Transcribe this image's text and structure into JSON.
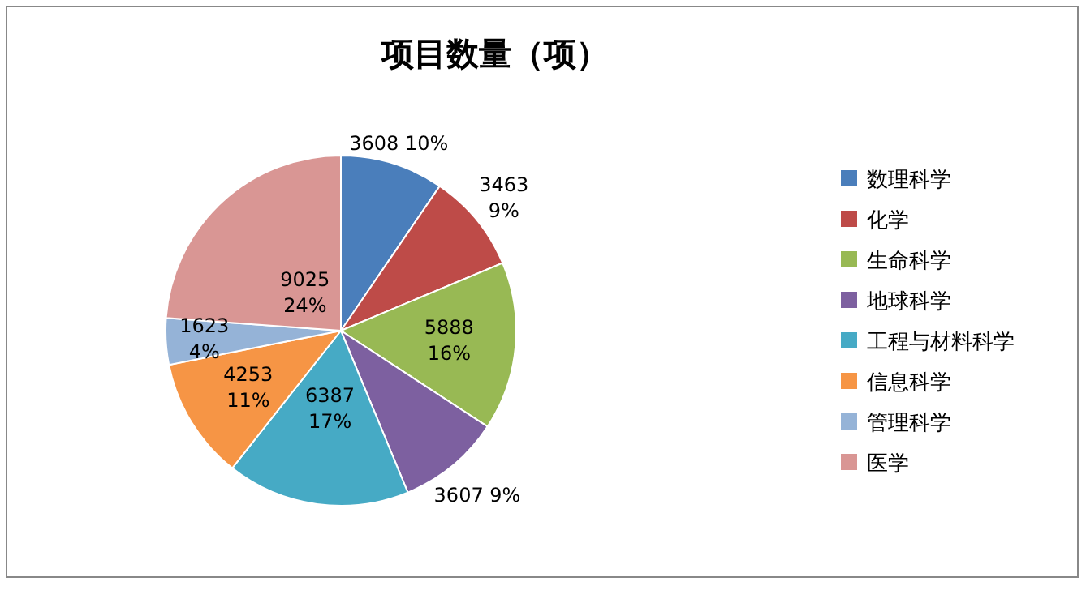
{
  "chart_data": {
    "type": "pie",
    "title": "项目数量（项）",
    "categories": [
      "数理科学",
      "化学",
      "生命科学",
      "地球科学",
      "工程与材料科学",
      "信息科学",
      "管理科学",
      "医学"
    ],
    "values": [
      3608,
      3463,
      5888,
      3607,
      6387,
      4253,
      1623,
      9025
    ],
    "colors": [
      "#4a7ebb",
      "#be4b48",
      "#98b954",
      "#7d60a0",
      "#46aac5",
      "#f69545",
      "#95b3d7",
      "#d99694"
    ],
    "value_labels": [
      "3608 10%",
      "3463 9%",
      "5888 16%",
      "3607 9%",
      "6387 17%",
      "4253 11%",
      "1623 4%",
      "9025 24%"
    ],
    "legend": "right"
  }
}
